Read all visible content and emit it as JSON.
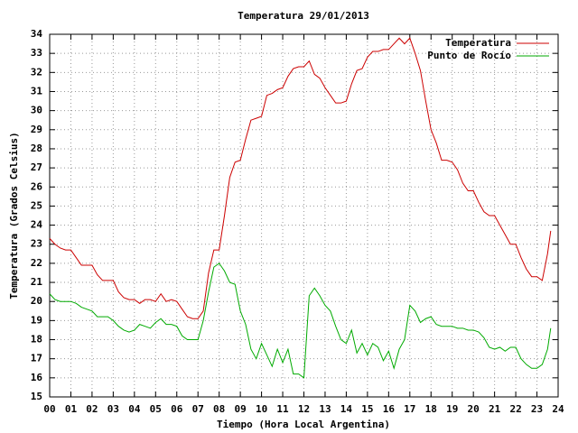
{
  "chart_data": {
    "type": "line",
    "title": "Temperatura 29/01/2013",
    "x_label": "Tiempo (Hora Local Argentina)",
    "y_label": "Temperatura (Grados Celsius)",
    "xlim": [
      0,
      24
    ],
    "ylim": [
      15,
      34
    ],
    "xticks": [
      {
        "value": 0,
        "label": "00"
      },
      {
        "value": 1,
        "label": "01"
      },
      {
        "value": 2,
        "label": "02"
      },
      {
        "value": 3,
        "label": "03"
      },
      {
        "value": 4,
        "label": "04"
      },
      {
        "value": 5,
        "label": "05"
      },
      {
        "value": 6,
        "label": "06"
      },
      {
        "value": 7,
        "label": "07"
      },
      {
        "value": 8,
        "label": "08"
      },
      {
        "value": 9,
        "label": "09"
      },
      10,
      11,
      12,
      13,
      14,
      15,
      16,
      17,
      18,
      19,
      20,
      21,
      22,
      23,
      24
    ],
    "yticks": [
      15,
      16,
      17,
      18,
      19,
      20,
      21,
      22,
      23,
      24,
      25,
      26,
      27,
      28,
      29,
      30,
      31,
      32,
      33,
      34
    ],
    "grid": true,
    "legend": "top-right",
    "x": [
      0,
      0.25,
      0.5,
      0.75,
      1,
      1.25,
      1.5,
      1.75,
      2,
      2.25,
      2.5,
      2.75,
      3,
      3.25,
      3.5,
      3.75,
      4,
      4.25,
      4.5,
      4.75,
      5,
      5.25,
      5.5,
      5.75,
      6,
      6.25,
      6.5,
      6.75,
      7,
      7.25,
      7.5,
      7.75,
      8,
      8.25,
      8.5,
      8.75,
      9,
      9.25,
      9.5,
      9.75,
      10,
      10.25,
      10.5,
      10.75,
      11,
      11.25,
      11.5,
      11.75,
      12,
      12.25,
      12.5,
      12.75,
      13,
      13.25,
      13.5,
      13.75,
      14,
      14.25,
      14.5,
      14.75,
      15,
      15.25,
      15.5,
      15.75,
      16,
      16.25,
      16.5,
      16.75,
      17,
      17.25,
      17.5,
      17.75,
      18,
      18.25,
      18.5,
      18.75,
      19,
      19.25,
      19.5,
      19.75,
      20,
      20.25,
      20.5,
      20.75,
      21,
      21.25,
      21.5,
      21.75,
      22,
      22.25,
      22.5,
      22.75,
      23,
      23.25,
      23.5,
      23.65
    ],
    "series": [
      {
        "name": "Temperatura",
        "color": "#cc0000",
        "values": [
          23.3,
          23.0,
          22.8,
          22.7,
          22.7,
          22.3,
          21.9,
          21.9,
          21.9,
          21.4,
          21.1,
          21.1,
          21.1,
          20.5,
          20.2,
          20.1,
          20.1,
          19.9,
          20.1,
          20.1,
          20.0,
          20.4,
          20.0,
          20.1,
          20.0,
          19.6,
          19.2,
          19.1,
          19.1,
          19.5,
          21.5,
          22.7,
          22.7,
          24.5,
          26.5,
          27.3,
          27.4,
          28.5,
          29.5,
          29.6,
          29.7,
          30.8,
          30.9,
          31.1,
          31.2,
          31.8,
          32.2,
          32.3,
          32.3,
          32.6,
          31.9,
          31.7,
          31.2,
          30.8,
          30.4,
          30.4,
          30.5,
          31.4,
          32.1,
          32.2,
          32.8,
          33.1,
          33.1,
          33.2,
          33.2,
          33.5,
          33.8,
          33.5,
          33.8,
          33.0,
          32.1,
          30.5,
          29.0,
          28.3,
          27.4,
          27.4,
          27.3,
          26.9,
          26.2,
          25.8,
          25.8,
          25.2,
          24.7,
          24.5,
          24.5,
          24.0,
          23.5,
          23.0,
          23.0,
          22.3,
          21.7,
          21.3,
          21.3,
          21.1,
          22.5,
          23.7
        ]
      },
      {
        "name": "Punto de Rocío",
        "color": "#00aa00",
        "values": [
          20.4,
          20.1,
          20.0,
          20.0,
          20.0,
          19.9,
          19.7,
          19.6,
          19.5,
          19.2,
          19.2,
          19.2,
          19.0,
          18.7,
          18.5,
          18.4,
          18.5,
          18.8,
          18.7,
          18.6,
          18.9,
          19.1,
          18.8,
          18.8,
          18.7,
          18.2,
          18.0,
          18.0,
          18.0,
          19.0,
          20.5,
          21.8,
          22.0,
          21.6,
          21.0,
          20.9,
          19.5,
          18.8,
          17.5,
          17.0,
          17.8,
          17.2,
          16.6,
          17.5,
          16.8,
          17.5,
          16.2,
          16.2,
          16.0,
          20.3,
          20.7,
          20.3,
          19.8,
          19.5,
          18.7,
          18.0,
          17.8,
          18.5,
          17.3,
          17.8,
          17.2,
          17.8,
          17.6,
          16.9,
          17.4,
          16.5,
          17.5,
          18.0,
          19.8,
          19.5,
          18.9,
          19.1,
          19.2,
          18.8,
          18.7,
          18.7,
          18.7,
          18.6,
          18.6,
          18.5,
          18.5,
          18.4,
          18.1,
          17.6,
          17.5,
          17.6,
          17.4,
          17.6,
          17.6,
          17.0,
          16.7,
          16.5,
          16.5,
          16.7,
          17.5,
          18.6
        ]
      }
    ]
  }
}
